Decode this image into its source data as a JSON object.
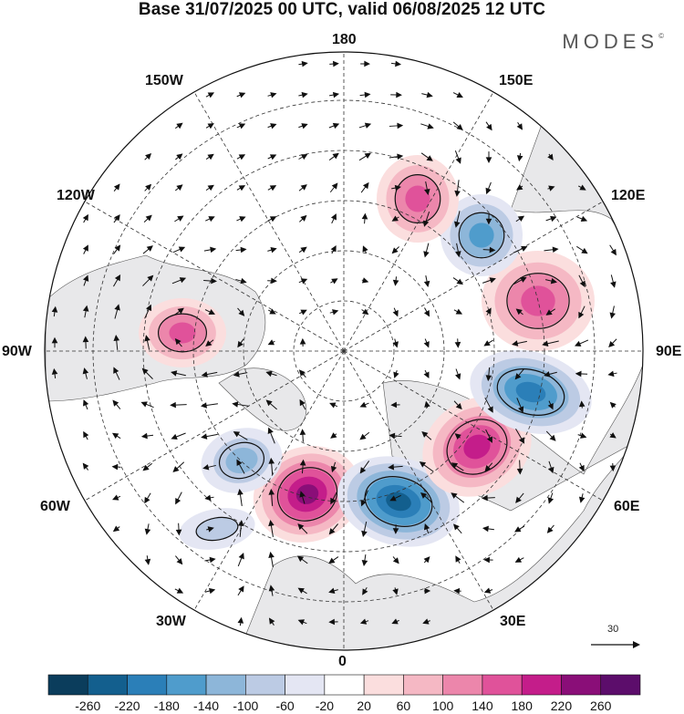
{
  "title": "Base 31/07/2025 00 UTC, valid 06/08/2025 12 UTC",
  "brand": "MODES",
  "brand_mark": "©",
  "longitude_labels": {
    "top": "180",
    "bottom": "0",
    "left": "90W",
    "right": "90E",
    "upper_left_1": "150W",
    "upper_left_2": "120W",
    "upper_right_1": "150E",
    "upper_right_2": "120E",
    "lower_left_1": "60W",
    "lower_left_2": "30W",
    "lower_right_1": "60E",
    "lower_right_2": "30E"
  },
  "reference_vector": {
    "label": "30"
  },
  "colorbar": {
    "labels": [
      "-260",
      "-220",
      "-180",
      "-140",
      "-100",
      "-60",
      "-20",
      "20",
      "60",
      "100",
      "140",
      "180",
      "220",
      "260"
    ],
    "colors": [
      "#0b3d5c",
      "#135f8e",
      "#2b7fb8",
      "#4f9ccc",
      "#8db6d9",
      "#bccbe4",
      "#e4e6f3",
      "#ffffff",
      "#fbdede",
      "#f5b8c4",
      "#ec86ab",
      "#e0529a",
      "#c41d8a",
      "#8a0e78",
      "#5c0d6b"
    ]
  },
  "anomalies": [
    {
      "name": "positive-anomaly-atlantic-east",
      "value": 260
    },
    {
      "name": "negative-anomaly-europe",
      "value": -240
    },
    {
      "name": "positive-anomaly-west-siberia",
      "value": 220
    },
    {
      "name": "negative-anomaly-central-asia",
      "value": -200
    },
    {
      "name": "positive-anomaly-east-siberia",
      "value": 160
    },
    {
      "name": "negative-anomaly-okhotsk",
      "value": -170
    },
    {
      "name": "positive-anomaly-kamchatka",
      "value": 170
    },
    {
      "name": "positive-anomaly-canada",
      "value": 190
    },
    {
      "name": "negative-anomaly-labrador",
      "value": -130
    },
    {
      "name": "negative-anomaly-atlantic-north",
      "value": -80
    }
  ]
}
